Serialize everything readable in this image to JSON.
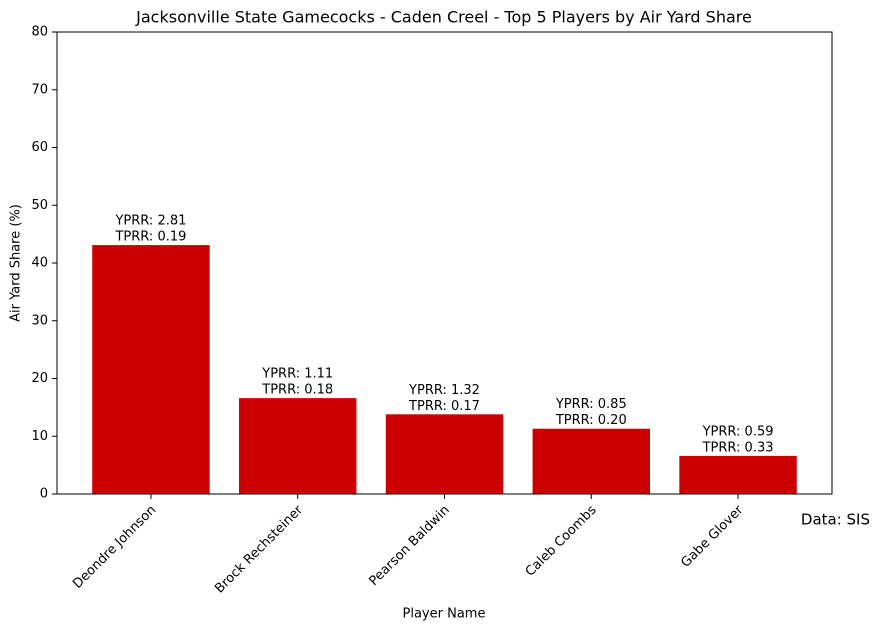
{
  "chart_data": {
    "type": "bar",
    "title": "Jacksonville State Gamecocks - Caden Creel - Top 5 Players by Air Yard Share",
    "x_label": "Player Name",
    "y_label": "Air Yard Share (%)",
    "categories": [
      "Deondre Johnson",
      "Brock Rechsteiner",
      "Pearson Baldwin",
      "Caleb Coombs",
      "Gabe Glover"
    ],
    "values": [
      43.1,
      16.6,
      13.8,
      11.3,
      6.6
    ],
    "annotations": [
      [
        "YPRR: 2.81",
        "TPRR: 0.19"
      ],
      [
        "YPRR: 1.11",
        "TPRR: 0.18"
      ],
      [
        "YPRR: 1.32",
        "TPRR: 0.17"
      ],
      [
        "YPRR: 0.85",
        "TPRR: 0.20"
      ],
      [
        "YPRR: 0.59",
        "TPRR: 0.33"
      ]
    ],
    "color": "#cc0000",
    "ylim": [
      0,
      80
    ],
    "yticks": [
      0,
      10,
      20,
      30,
      40,
      50,
      60,
      70,
      80
    ],
    "grid": false,
    "source_note": "Data: SIS"
  }
}
